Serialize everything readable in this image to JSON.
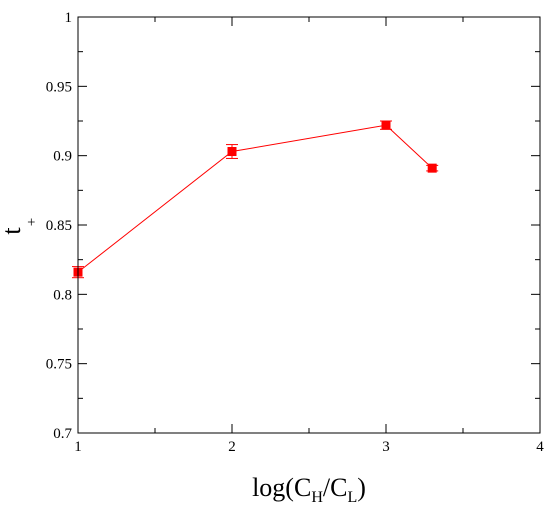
{
  "chart_data": {
    "type": "line",
    "xlabel": {
      "base": "log(C",
      "sub1": "H",
      "mid": "/C",
      "sub2": "L",
      "end": ")"
    },
    "ylabel": {
      "base": "t",
      "sub": "+"
    },
    "xlim": [
      1,
      4
    ],
    "ylim": [
      0.7,
      1.0
    ],
    "x_ticks": [
      "1",
      "2",
      "3",
      "4"
    ],
    "y_ticks": [
      "0.7",
      "0.75",
      "0.8",
      "0.85",
      "0.9",
      "0.95",
      "1"
    ],
    "grid": false,
    "series": [
      {
        "color": "#ff0000",
        "marker": "square",
        "points": [
          {
            "x": 1.0,
            "y": 0.816,
            "err": 0.004
          },
          {
            "x": 2.0,
            "y": 0.903,
            "err": 0.005
          },
          {
            "x": 3.0,
            "y": 0.922,
            "err": 0.003
          },
          {
            "x": 3.3,
            "y": 0.891,
            "err": 0.002
          }
        ]
      }
    ]
  }
}
